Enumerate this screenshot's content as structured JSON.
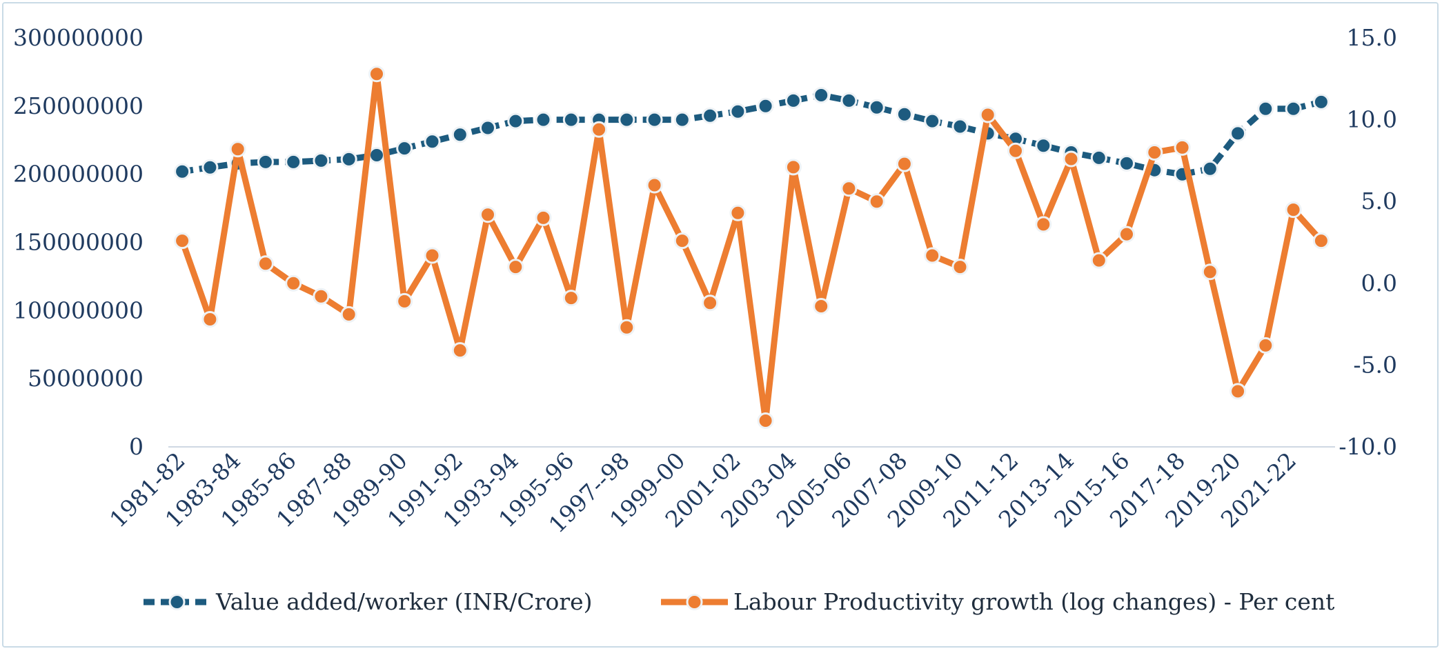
{
  "chart_data": {
    "type": "line",
    "categories": [
      "1981-82",
      "1982-83",
      "1983-84",
      "1984-85",
      "1985-86",
      "1986-87",
      "1987-88",
      "1988-89",
      "1989-90",
      "1990-91",
      "1991-92",
      "1992-93",
      "1993-94",
      "1994-95",
      "1995-96",
      "1996-97",
      "1997--98",
      "1998-99",
      "1999-00",
      "2000-01",
      "2001-02",
      "2002-03",
      "2003-04",
      "2004-05",
      "2005-06",
      "2006-07",
      "2007-08",
      "2008-09",
      "2009-10",
      "2010-11",
      "2011-12",
      "2012-13",
      "2013-14",
      "2014-15",
      "2015-16",
      "2016-17",
      "2017-18",
      "2018-19",
      "2019-20",
      "2020-21",
      "2021-22",
      "2022-23"
    ],
    "x_tick_labels": [
      "1981-82",
      "1983-84",
      "1985-86",
      "1987-88",
      "1989-90",
      "1991-92",
      "1993-94",
      "1995-96",
      "1997--98",
      "1999-00",
      "2001-02",
      "2003-04",
      "2005-06",
      "2007-08",
      "2009-10",
      "2011-12",
      "2013-14",
      "2015-16",
      "2017-18",
      "2019-20",
      "2021-22"
    ],
    "y_left": {
      "min": 0,
      "max": 300000000,
      "step": 50000000,
      "tick_labels": [
        "0",
        "50000000",
        "100000000",
        "150000000",
        "200000000",
        "250000000",
        "300000000"
      ]
    },
    "y_right": {
      "min": -10,
      "max": 15,
      "step": 5,
      "tick_labels": [
        "-10.0",
        "-5.0",
        "0.0",
        "5.0",
        "10.0",
        "15.0"
      ]
    },
    "grid": false,
    "legend_position": "bottom",
    "series": [
      {
        "name": "Value added/worker (INR/Crore)",
        "axis": "left",
        "color": "#1d5b7f",
        "style": "dashed",
        "values": [
          202000000,
          205000000,
          208000000,
          209000000,
          209000000,
          210000000,
          211000000,
          214000000,
          219000000,
          224000000,
          229000000,
          234000000,
          239000000,
          240000000,
          240000000,
          240000000,
          240000000,
          240000000,
          240000000,
          243000000,
          246000000,
          250000000,
          254000000,
          258000000,
          254000000,
          249000000,
          244000000,
          239000000,
          235000000,
          230000000,
          226000000,
          221000000,
          216000000,
          212000000,
          208000000,
          203000000,
          200000000,
          204000000,
          230000000,
          248000000,
          248000000,
          253000000
        ]
      },
      {
        "name": "Labour Productivity growth (log changes) - Per cent",
        "axis": "right",
        "color": "#ed7d31",
        "style": "solid",
        "values": [
          2.6,
          -2.2,
          8.2,
          1.2,
          0.0,
          -0.8,
          -1.9,
          12.8,
          -1.1,
          1.7,
          -4.1,
          4.2,
          1.0,
          4.0,
          -0.9,
          9.4,
          -2.7,
          6.0,
          2.6,
          -1.2,
          4.3,
          -8.4,
          7.1,
          -1.4,
          5.8,
          5.0,
          7.3,
          1.7,
          1.0,
          10.3,
          8.1,
          3.6,
          7.6,
          1.4,
          3.0,
          8.0,
          8.3,
          0.7,
          -6.6,
          -3.8,
          4.5,
          2.6
        ]
      }
    ]
  }
}
